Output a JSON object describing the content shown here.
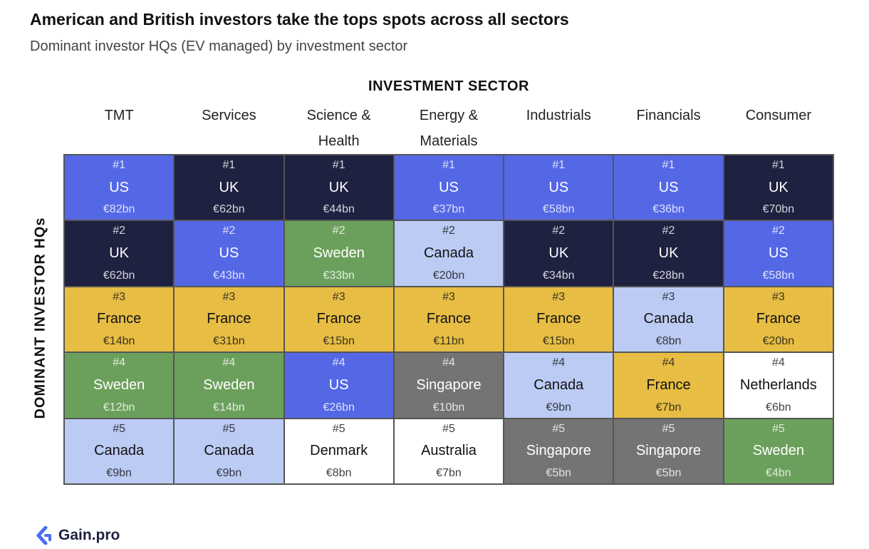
{
  "title": "American and British investors take the tops spots across all sectors",
  "subtitle": "Dominant investor HQs (EV managed) by investment sector",
  "logo_text": "Gain.pro",
  "colors": {
    "US": "#5468e6",
    "UK": "#1e2140",
    "France": "#e7bd44",
    "Sweden": "#6ba05c",
    "Canada": "#bccbf4",
    "Singapore": "#747474",
    "Denmark": "#ffffff",
    "Australia": "#ffffff",
    "Netherlands": "#ffffff"
  },
  "text_colors": {
    "US": "#ffffff",
    "UK": "#ffffff",
    "France": "#111111",
    "Sweden": "#ffffff",
    "Canada": "#111111",
    "Singapore": "#ffffff",
    "Denmark": "#111111",
    "Australia": "#111111",
    "Netherlands": "#111111"
  },
  "chart_data": {
    "type": "table",
    "x_axis_title": "INVESTMENT SECTOR",
    "y_axis_title": "DOMINANT INVESTOR HQs",
    "columns": [
      "TMT",
      "Services",
      "Science &\nHealth",
      "Energy &\nMaterials",
      "Industrials",
      "Financials",
      "Consumer"
    ],
    "rank_labels": [
      "#1",
      "#2",
      "#3",
      "#4",
      "#5"
    ],
    "cells": [
      [
        {
          "country": "US",
          "value": "€82bn"
        },
        {
          "country": "UK",
          "value": "€62bn"
        },
        {
          "country": "UK",
          "value": "€44bn"
        },
        {
          "country": "US",
          "value": "€37bn"
        },
        {
          "country": "US",
          "value": "€58bn"
        },
        {
          "country": "US",
          "value": "€36bn"
        },
        {
          "country": "UK",
          "value": "€70bn"
        }
      ],
      [
        {
          "country": "UK",
          "value": "€62bn"
        },
        {
          "country": "US",
          "value": "€43bn"
        },
        {
          "country": "Sweden",
          "value": "€33bn"
        },
        {
          "country": "Canada",
          "value": "€20bn"
        },
        {
          "country": "UK",
          "value": "€34bn"
        },
        {
          "country": "UK",
          "value": "€28bn"
        },
        {
          "country": "US",
          "value": "€58bn"
        }
      ],
      [
        {
          "country": "France",
          "value": "€14bn"
        },
        {
          "country": "France",
          "value": "€31bn"
        },
        {
          "country": "France",
          "value": "€15bn"
        },
        {
          "country": "France",
          "value": "€11bn"
        },
        {
          "country": "France",
          "value": "€15bn"
        },
        {
          "country": "Canada",
          "value": "€8bn"
        },
        {
          "country": "France",
          "value": "€20bn"
        }
      ],
      [
        {
          "country": "Sweden",
          "value": "€12bn"
        },
        {
          "country": "Sweden",
          "value": "€14bn"
        },
        {
          "country": "US",
          "value": "€26bn"
        },
        {
          "country": "Singapore",
          "value": "€10bn"
        },
        {
          "country": "Canada",
          "value": "€9bn"
        },
        {
          "country": "France",
          "value": "€7bn"
        },
        {
          "country": "Netherlands",
          "value": "€6bn"
        }
      ],
      [
        {
          "country": "Canada",
          "value": "€9bn"
        },
        {
          "country": "Canada",
          "value": "€9bn"
        },
        {
          "country": "Denmark",
          "value": "€8bn"
        },
        {
          "country": "Australia",
          "value": "€7bn"
        },
        {
          "country": "Singapore",
          "value": "€5bn"
        },
        {
          "country": "Singapore",
          "value": "€5bn"
        },
        {
          "country": "Sweden",
          "value": "€4bn"
        }
      ]
    ]
  }
}
